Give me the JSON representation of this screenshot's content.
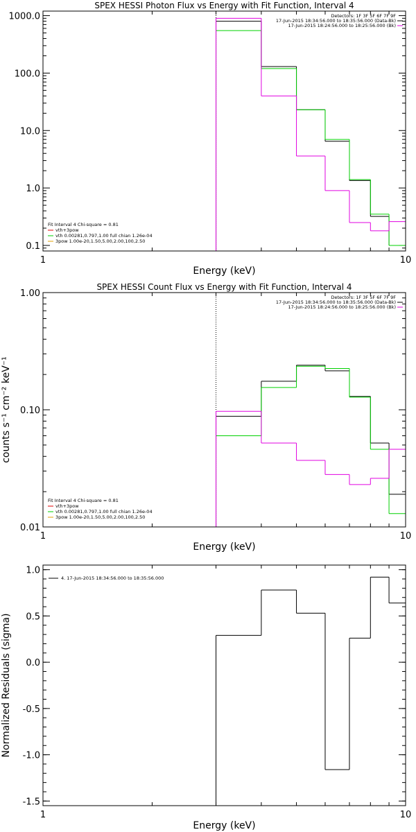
{
  "colors": {
    "black": "#000000",
    "magenta": "#e000e0",
    "green": "#00d000",
    "red": "#e00000",
    "orange": "#e0a000"
  },
  "chart_data": [
    {
      "type": "line",
      "title": "SPEX HESSI Photon Flux vs Energy with Fit Function, Interval 4",
      "xlabel": "Energy (keV)",
      "ylabel": "",
      "xscale": "log",
      "yscale": "log",
      "xlim": [
        1,
        10
      ],
      "ylim": [
        0.08,
        1200
      ],
      "xticks": [
        {
          "v": 1,
          "label": "1"
        },
        {
          "v": 10,
          "label": "10"
        }
      ],
      "yticks": [
        {
          "v": 0.1,
          "label": "0.1"
        },
        {
          "v": 1,
          "label": "1.0"
        },
        {
          "v": 10,
          "label": "10.0"
        },
        {
          "v": 100,
          "label": "100.0"
        },
        {
          "v": 1000,
          "label": "1000.0"
        }
      ],
      "threshold_x": 3.0,
      "header_lines": [
        "Detectors: 1F 3F 5F 6F 7F 9F",
        "17-Jun-2015 18:34:56.000 to 18:35:56.000 (Data-Bk)",
        "17-Jun-2015 18:24:56.000 to 18:25:56.000 (Bk)"
      ],
      "header_colors": [
        "#000000",
        "#000000",
        "#e000e0"
      ],
      "legend_lines": [
        "Fit Interval  4     Chi-square = 0.81",
        "vth+3pow",
        "vth 0.00281,0.797,1.00  full chian 1.26e-04",
        "3pow 1.00e-20,1.50,5.00,2.00,100,2.50"
      ],
      "legend_colors": [
        "#000000",
        "#e00000",
        "#00d000",
        "#e0a000"
      ],
      "series": [
        {
          "color": "#000000",
          "edges": [
            3,
            4,
            5,
            6,
            7,
            8,
            9,
            10
          ],
          "values": [
            800,
            130,
            23,
            6.5,
            1.35,
            0.32,
            0.1
          ]
        },
        {
          "color": "#00d000",
          "edges": [
            3,
            4,
            5,
            6,
            7,
            8,
            9,
            10
          ],
          "values": [
            550,
            120,
            23,
            7,
            1.4,
            0.35,
            0.1
          ]
        },
        {
          "color": "#e000e0",
          "edges": [
            3,
            4,
            5,
            6,
            7,
            8,
            9,
            10
          ],
          "values": [
            900,
            40,
            3.6,
            0.9,
            0.25,
            0.18,
            0.26
          ]
        }
      ]
    },
    {
      "type": "line",
      "title": "SPEX HESSI Count Flux vs Energy with Fit Function, Interval 4",
      "xlabel": "Energy (keV)",
      "ylabel": "counts s⁻¹ cm⁻² keV⁻¹",
      "xscale": "log",
      "yscale": "log",
      "xlim": [
        1,
        10
      ],
      "ylim": [
        0.01,
        1.0
      ],
      "xticks": [
        {
          "v": 1,
          "label": "1"
        },
        {
          "v": 10,
          "label": "10"
        }
      ],
      "yticks": [
        {
          "v": 0.01,
          "label": "0.01"
        },
        {
          "v": 0.1,
          "label": "0.10"
        },
        {
          "v": 1,
          "label": "1.00"
        }
      ],
      "threshold_x": 3.0,
      "header_lines": [
        "Detectors: 1F 3F 5F 6F 7F 9F",
        "17-Jun-2015 18:34:56.000 to 18:35:56.000 (Data-Bk)",
        "17-Jun-2015 18:24:56.000 to 18:25:56.000 (Bk)"
      ],
      "header_colors": [
        "#000000",
        "#000000",
        "#e000e0"
      ],
      "legend_lines": [
        "Fit Interval  4     Chi-square = 0.81",
        "vth+3pow",
        "vth 0.00281,0.797,1.00  full chian 1.26e-04",
        "3pow 1.00e-20,1.50,5.00,2.00,100,2.50"
      ],
      "legend_colors": [
        "#000000",
        "#e00000",
        "#00d000",
        "#e0a000"
      ],
      "series": [
        {
          "color": "#000000",
          "edges": [
            3,
            4,
            5,
            6,
            7,
            8,
            9,
            10
          ],
          "values": [
            0.088,
            0.175,
            0.24,
            0.215,
            0.13,
            0.052,
            0.019
          ]
        },
        {
          "color": "#00d000",
          "edges": [
            3,
            4,
            5,
            6,
            7,
            8,
            9,
            10
          ],
          "values": [
            0.06,
            0.155,
            0.235,
            0.225,
            0.128,
            0.046,
            0.013
          ]
        },
        {
          "color": "#e000e0",
          "edges": [
            3,
            4,
            5,
            6,
            7,
            8,
            9,
            10
          ],
          "values": [
            0.097,
            0.052,
            0.037,
            0.028,
            0.023,
            0.026,
            0.046
          ]
        }
      ]
    },
    {
      "type": "line",
      "title": "",
      "xlabel": "Energy (keV)",
      "ylabel": "Normalized Residuals (sigma)",
      "xscale": "log",
      "yscale": "linear",
      "xlim": [
        1,
        10
      ],
      "ylim": [
        -1.55,
        1.05
      ],
      "xticks": [
        {
          "v": 1,
          "label": "1"
        },
        {
          "v": 10,
          "label": "10"
        }
      ],
      "yticks": [
        {
          "v": -1.5,
          "label": "-1.5"
        },
        {
          "v": -1.0,
          "label": "-1.0"
        },
        {
          "v": -0.5,
          "label": "-0.5"
        },
        {
          "v": 0,
          "label": "0.0"
        },
        {
          "v": 0.5,
          "label": "0.5"
        },
        {
          "v": 1.0,
          "label": "1.0"
        }
      ],
      "legend_lines": [
        "4. 17-Jun-2015 18:34:56.000 to 18:35:56.000"
      ],
      "series": [
        {
          "color": "#000000",
          "edges": [
            3,
            4,
            5,
            6,
            7,
            8,
            9,
            10
          ],
          "values": [
            0.29,
            0.78,
            0.53,
            -1.16,
            0.26,
            0.92,
            0.64
          ]
        }
      ]
    }
  ]
}
